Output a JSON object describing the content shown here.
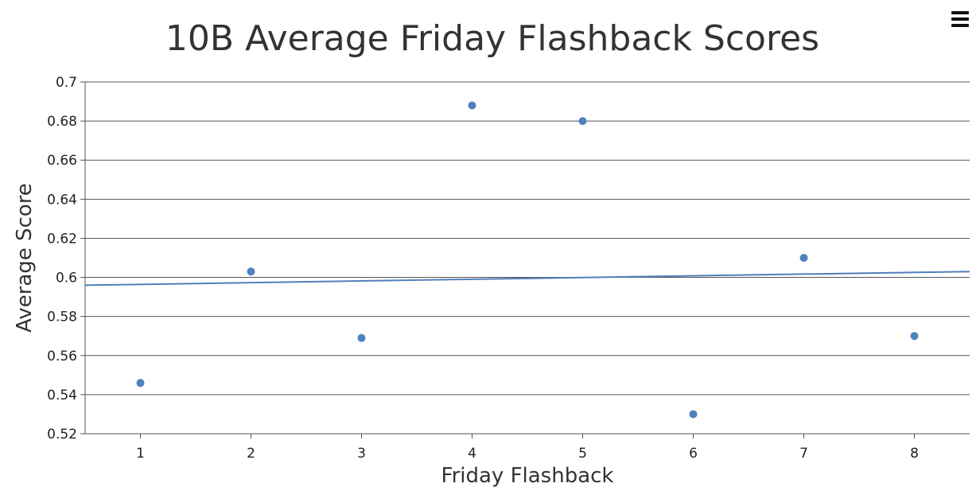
{
  "toolbar": {
    "menu_icon": "hamburger-icon"
  },
  "chart_data": {
    "type": "scatter",
    "title": "10B Average Friday Flashback Scores",
    "xlabel": "Friday Flashback",
    "ylabel": "Average Score",
    "xlim": [
      0.5,
      8.5
    ],
    "ylim": [
      0.52,
      0.7
    ],
    "xticks": [
      "1",
      "2",
      "3",
      "4",
      "5",
      "6",
      "7",
      "8"
    ],
    "yticks": [
      "0.52",
      "0.54",
      "0.56",
      "0.58",
      "0.6",
      "0.62",
      "0.64",
      "0.66",
      "0.68",
      "0.7"
    ],
    "grid": true,
    "series": [
      {
        "x": [
          1,
          2,
          3,
          4,
          5,
          6,
          7,
          8
        ],
        "y": [
          0.546,
          0.603,
          0.569,
          0.688,
          0.68,
          0.53,
          0.61,
          0.57
        ]
      }
    ],
    "trendline": {
      "x": [
        0.5,
        8.5
      ],
      "y": [
        0.596,
        0.603
      ]
    },
    "colors": {
      "points": "#4f81bd",
      "trendline": "#4f7fba",
      "grid": "#555555",
      "axis": "#555555"
    }
  }
}
